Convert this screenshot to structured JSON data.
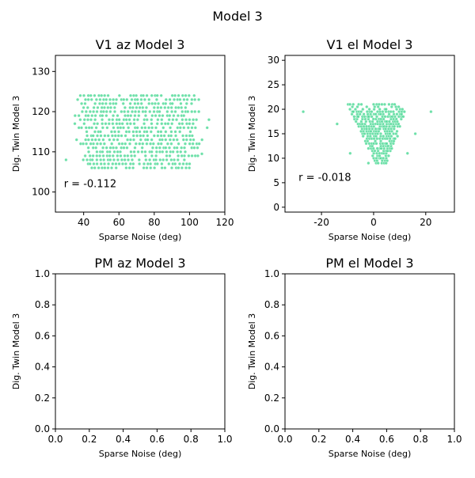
{
  "figure": {
    "title": "Model 3"
  },
  "colors": {
    "points": "#3dd68c"
  },
  "chart_data": [
    {
      "type": "scatter",
      "title": "V1 az Model 3",
      "xlabel": "Sparse Noise (deg)",
      "ylabel": "Dig. Twin Model 3",
      "xlim": [
        24,
        120
      ],
      "ylim": [
        95,
        134
      ],
      "xticks": [
        40,
        60,
        80,
        100,
        120
      ],
      "yticks": [
        100,
        110,
        120,
        130
      ],
      "annotation": "r = -0.112",
      "point_cloud": {
        "x_range": [
          30,
          111
        ],
        "y_levels": [
          106,
          107,
          108,
          109,
          110,
          111,
          112,
          113,
          114,
          115,
          116,
          117,
          118,
          119,
          120,
          121,
          122,
          123,
          124
        ],
        "x_spacing": 2
      }
    },
    {
      "type": "scatter",
      "title": "V1 el Model 3",
      "xlabel": "Sparse Noise (deg)",
      "ylabel": "Dig. Twin Model 3",
      "xlim": [
        -34,
        31
      ],
      "ylim": [
        -1,
        31
      ],
      "xticks": [
        -20,
        0,
        20
      ],
      "yticks": [
        0,
        5,
        10,
        15,
        20,
        25,
        30
      ],
      "annotation": "r = -0.018",
      "point_cloud": {
        "x_range": [
          -12,
          22
        ],
        "y_range": [
          9,
          21
        ],
        "y_spacing": 0.5,
        "x_spacing": 1
      }
    },
    {
      "type": "scatter",
      "title": "PM az Model 3",
      "xlabel": "Sparse Noise (deg)",
      "ylabel": "Dig. Twin Model 3",
      "xlim": [
        0,
        1
      ],
      "ylim": [
        0,
        1
      ],
      "xticks": [
        "0.0",
        "0.2",
        "0.4",
        "0.6",
        "0.8",
        "1.0"
      ],
      "yticks": [
        "0.0",
        "0.2",
        "0.4",
        "0.6",
        "0.8",
        "1.0"
      ],
      "points": []
    },
    {
      "type": "scatter",
      "title": "PM el Model 3",
      "xlabel": "Sparse Noise (deg)",
      "ylabel": "Dig. Twin Model 3",
      "xlim": [
        0,
        1
      ],
      "ylim": [
        0,
        1
      ],
      "xticks": [
        "0.0",
        "0.2",
        "0.4",
        "0.6",
        "0.8",
        "1.0"
      ],
      "yticks": [
        "0.0",
        "0.2",
        "0.4",
        "0.6",
        "0.8",
        "1.0"
      ],
      "points": []
    }
  ]
}
